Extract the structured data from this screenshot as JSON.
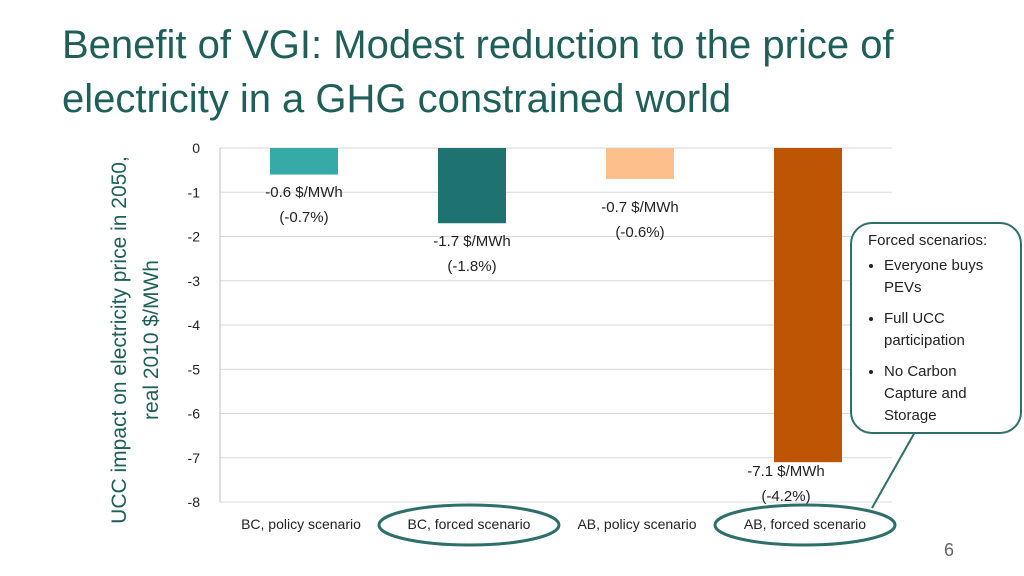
{
  "slide": {
    "title": "Benefit of VGI: Modest reduction to the price of electricity in a GHG constrained world",
    "page_number": "6"
  },
  "callout": {
    "title": "Forced scenarios:",
    "items": [
      "Everyone buys PEVs",
      "Full UCC participation",
      "No Carbon Capture and Storage"
    ]
  },
  "chart_data": {
    "type": "bar",
    "title": "",
    "ylabel": "UCC impact on electricity price in 2050, real 2010 $/MWh",
    "xlabel": "",
    "ylim": [
      -8,
      0
    ],
    "yticks": [
      0,
      -1,
      -2,
      -3,
      -4,
      -5,
      -6,
      -7,
      -8
    ],
    "grid": true,
    "categories": [
      "BC, policy scenario",
      "BC, forced scenario",
      "AB, policy scenario",
      "AB, forced scenario"
    ],
    "values": [
      -0.6,
      -1.7,
      -0.7,
      -7.1
    ],
    "colors": [
      "#35aaa6",
      "#1e7270",
      "#fdc08c",
      "#bd5504"
    ],
    "data_labels": [
      [
        "-0.6 $/MWh",
        "(-0.7%)"
      ],
      [
        "-1.7 $/MWh",
        "(-1.8%)"
      ],
      [
        "-0.7 $/MWh",
        "(-0.6%)"
      ],
      [
        "-7.1 $/MWh",
        "(-4.2%)"
      ]
    ],
    "highlighted_categories": [
      "BC, forced scenario",
      "AB, forced scenario"
    ],
    "highlight_color": "#2e6f6a"
  }
}
